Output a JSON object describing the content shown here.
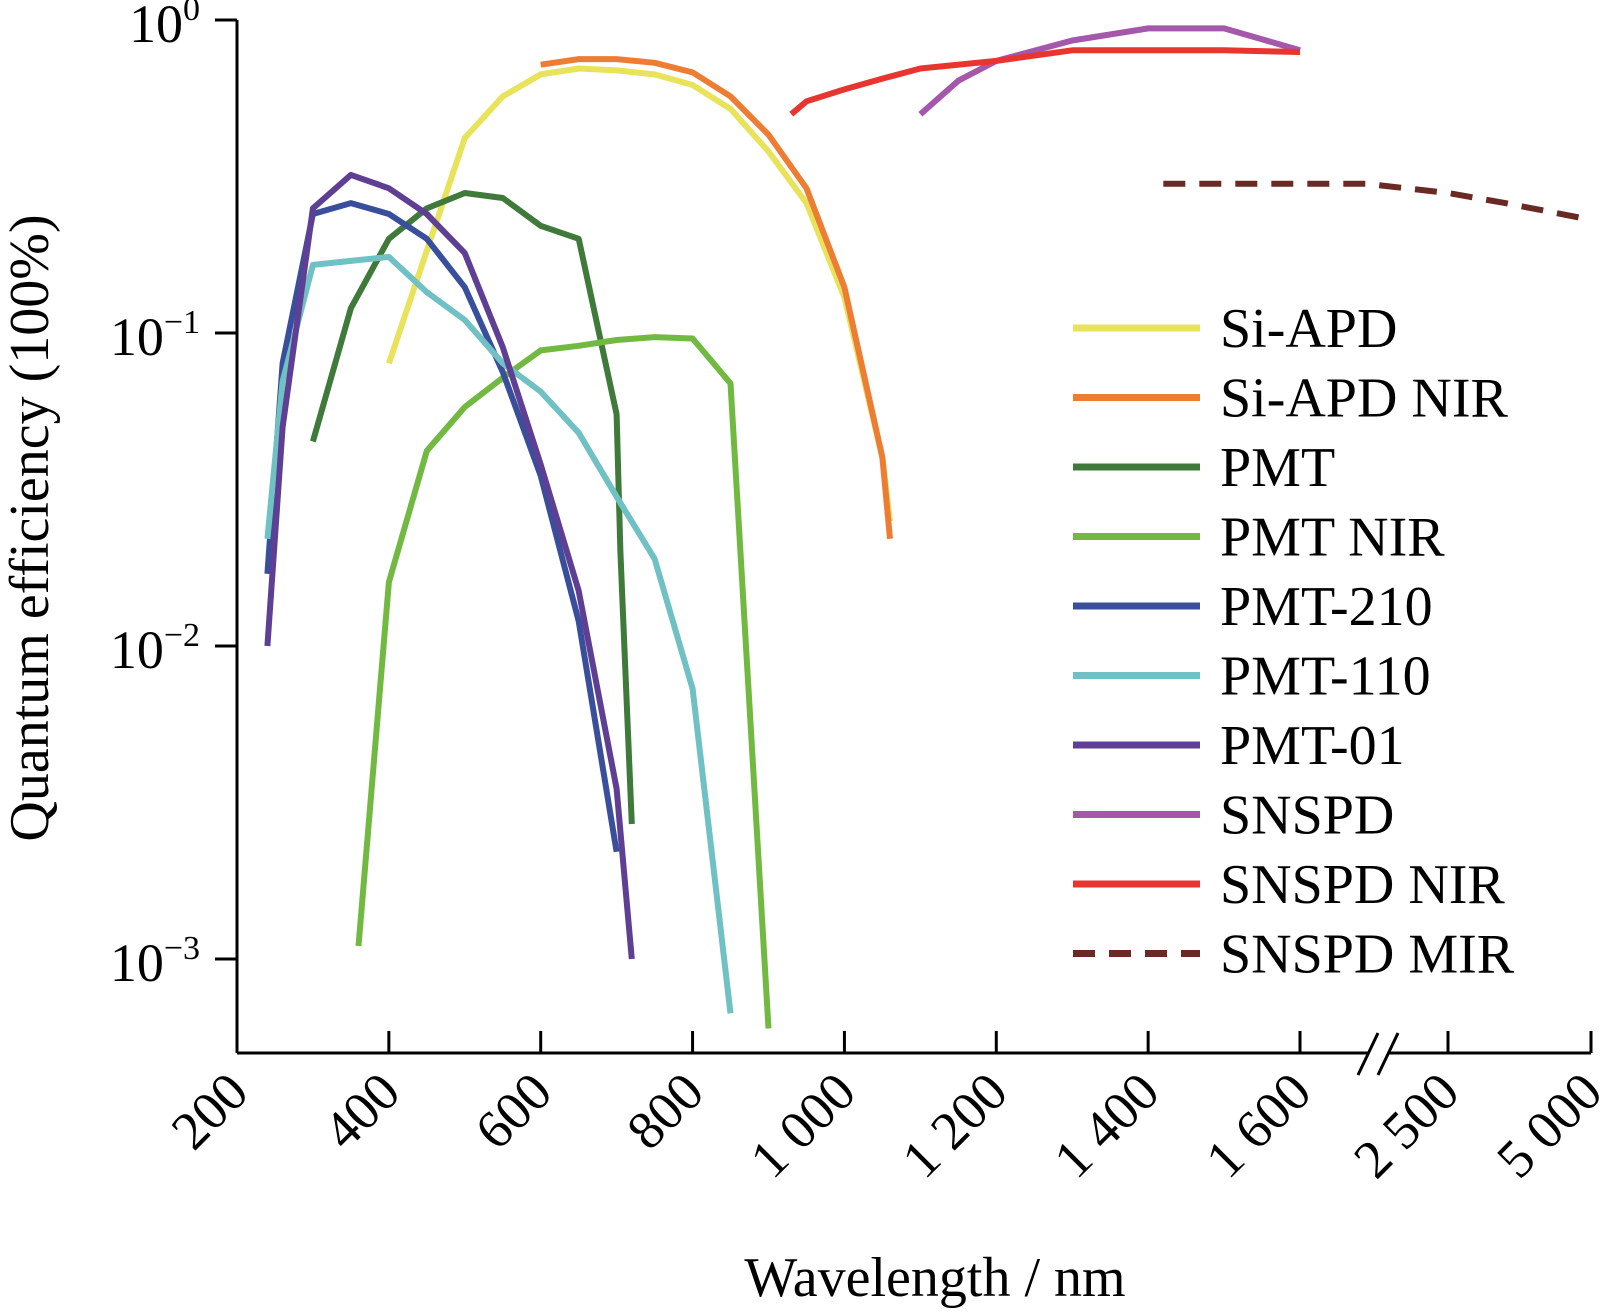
{
  "chart_data": {
    "type": "line",
    "title": "",
    "xlabel": "Wavelength / nm",
    "ylabel": "Quantum efficiency (100%)",
    "y_scale": "log",
    "ylim": [
      0.0005,
      1
    ],
    "x_axis_break": "between 1 600 and 2 500",
    "x_ticks": [
      {
        "value": 200,
        "label": "200"
      },
      {
        "value": 400,
        "label": "400"
      },
      {
        "value": 600,
        "label": "600"
      },
      {
        "value": 800,
        "label": "800"
      },
      {
        "value": 1000,
        "label": "1 000"
      },
      {
        "value": 1200,
        "label": "1 200"
      },
      {
        "value": 1400,
        "label": "1 400"
      },
      {
        "value": 1600,
        "label": "1 600"
      },
      {
        "value": 2500,
        "label": "2 500"
      },
      {
        "value": 5000,
        "label": "5 000"
      }
    ],
    "y_ticks": [
      {
        "value": 1,
        "base": "10",
        "exp": "0"
      },
      {
        "value": 0.1,
        "base": "10",
        "exp": "−1"
      },
      {
        "value": 0.01,
        "base": "10",
        "exp": "−2"
      },
      {
        "value": 0.001,
        "base": "10",
        "exp": "−3"
      }
    ],
    "legend_position": "right",
    "series": [
      {
        "name": "Si-APD",
        "color": "#e8e35a",
        "dash": false,
        "x": [
          400,
          500,
          550,
          600,
          650,
          700,
          750,
          800,
          850,
          900,
          950,
          1000,
          1050,
          1060
        ],
        "y": [
          0.08,
          0.42,
          0.57,
          0.67,
          0.7,
          0.69,
          0.67,
          0.62,
          0.52,
          0.38,
          0.26,
          0.13,
          0.04,
          0.025
        ]
      },
      {
        "name": "Si-APD NIR",
        "color": "#ee7d34",
        "dash": false,
        "x": [
          600,
          650,
          700,
          750,
          800,
          850,
          900,
          950,
          1000,
          1050,
          1060
        ],
        "y": [
          0.72,
          0.75,
          0.75,
          0.73,
          0.68,
          0.57,
          0.43,
          0.29,
          0.14,
          0.04,
          0.022
        ]
      },
      {
        "name": "PMT",
        "color": "#3f7a3a",
        "dash": false,
        "x": [
          300,
          350,
          400,
          450,
          500,
          550,
          600,
          650,
          700,
          705,
          720
        ],
        "y": [
          0.045,
          0.12,
          0.2,
          0.25,
          0.28,
          0.27,
          0.22,
          0.2,
          0.055,
          0.02,
          0.0027
        ]
      },
      {
        "name": "PMT NIR",
        "color": "#72b941",
        "dash": false,
        "x": [
          360,
          400,
          450,
          500,
          550,
          600,
          650,
          700,
          750,
          800,
          850,
          900
        ],
        "y": [
          0.0011,
          0.016,
          0.042,
          0.058,
          0.072,
          0.088,
          0.091,
          0.095,
          0.097,
          0.096,
          0.069,
          0.0006
        ]
      },
      {
        "name": "PMT-210",
        "color": "#3a4f9c",
        "dash": false,
        "x": [
          240,
          260,
          300,
          350,
          400,
          450,
          500,
          550,
          600,
          650,
          700
        ],
        "y": [
          0.017,
          0.08,
          0.24,
          0.26,
          0.24,
          0.2,
          0.14,
          0.075,
          0.035,
          0.012,
          0.0022
        ]
      },
      {
        "name": "PMT-110",
        "color": "#6fc1c4",
        "dash": false,
        "x": [
          240,
          260,
          300,
          350,
          400,
          450,
          500,
          550,
          600,
          650,
          700,
          750,
          800,
          850
        ],
        "y": [
          0.022,
          0.07,
          0.165,
          0.17,
          0.175,
          0.135,
          0.11,
          0.08,
          0.065,
          0.048,
          0.03,
          0.019,
          0.0073,
          0.00067
        ]
      },
      {
        "name": "PMT-01",
        "color": "#5f3f94",
        "dash": false,
        "x": [
          240,
          260,
          300,
          350,
          400,
          450,
          500,
          550,
          600,
          650,
          700,
          720
        ],
        "y": [
          0.01,
          0.05,
          0.25,
          0.32,
          0.29,
          0.24,
          0.18,
          0.09,
          0.038,
          0.015,
          0.0035,
          0.001
        ]
      },
      {
        "name": "SNSPD",
        "color": "#a457ab",
        "dash": false,
        "x": [
          1100,
          1150,
          1200,
          1300,
          1400,
          1500,
          1600
        ],
        "y": [
          0.5,
          0.64,
          0.74,
          0.86,
          0.94,
          0.94,
          0.8
        ]
      },
      {
        "name": "SNSPD NIR",
        "color": "#e8352f",
        "dash": false,
        "x": [
          930,
          950,
          1000,
          1050,
          1100,
          1200,
          1300,
          1400,
          1500,
          1600
        ],
        "y": [
          0.5,
          0.55,
          0.6,
          0.65,
          0.7,
          0.74,
          0.8,
          0.8,
          0.8,
          0.79
        ]
      },
      {
        "name": "SNSPD MIR",
        "color": "#6a2a24",
        "dash": true,
        "x": [
          1420,
          1500,
          1600,
          1800,
          2000,
          2500,
          3500,
          5000
        ],
        "y": [
          0.3,
          0.3,
          0.3,
          0.3,
          0.3,
          0.28,
          0.26,
          0.23
        ]
      }
    ]
  }
}
